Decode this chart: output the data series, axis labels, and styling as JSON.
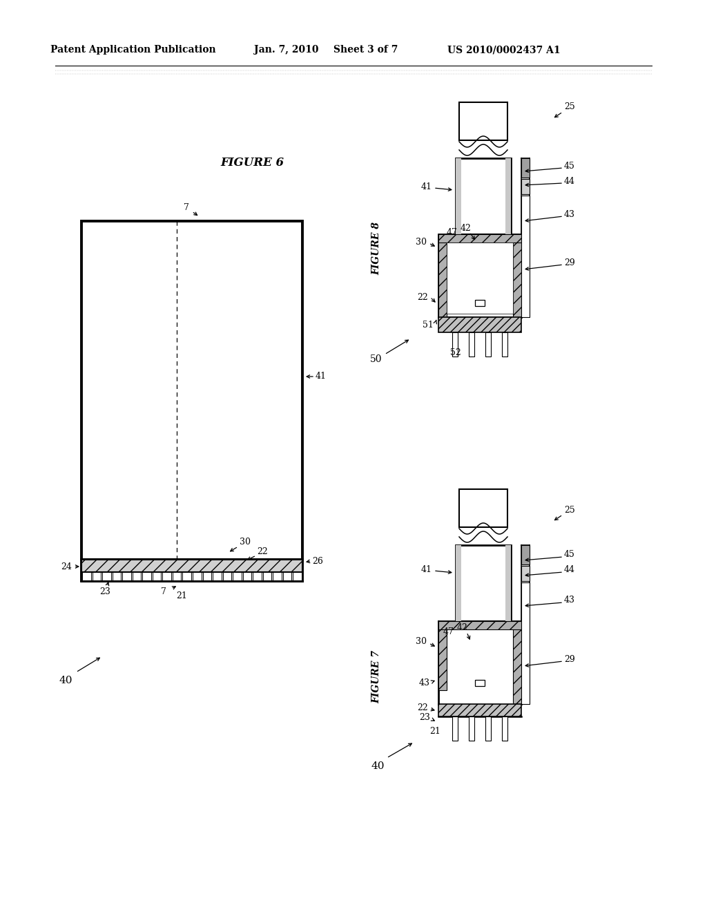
{
  "bg_color": "#ffffff",
  "header_left": "Patent Application Publication",
  "header_mid1": "Jan. 7, 2010",
  "header_mid2": "Sheet 3 of 7",
  "header_right": "US 2010/0002437 A1"
}
